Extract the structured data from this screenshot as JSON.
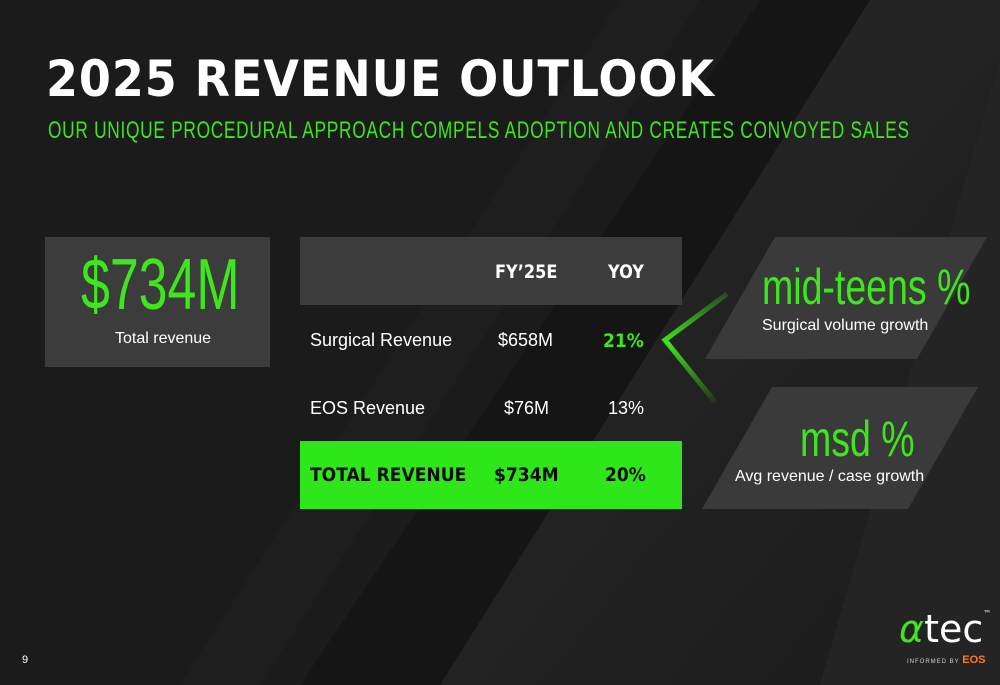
{
  "slide": {
    "title": "2025 REVENUE OUTLOOK",
    "subtitle": "OUR UNIQUE PROCEDURAL APPROACH COMPELS ADOPTION AND CREATES CONVOYED SALES",
    "page_number": "9"
  },
  "total_card": {
    "value": "$734M",
    "label": "Total revenue"
  },
  "table": {
    "headers": [
      "",
      "FY’25E",
      "YOY"
    ],
    "rows": [
      {
        "label": "Surgical Revenue",
        "fy25e": "$658M",
        "yoy": "21%"
      },
      {
        "label": "EOS Revenue",
        "fy25e": "$76M",
        "yoy": "13%"
      },
      {
        "label": "TOTAL REVENUE",
        "fy25e": "$734M",
        "yoy": "20%"
      }
    ]
  },
  "callouts": [
    {
      "headline": "mid-teens %",
      "caption": "Surgical volume growth"
    },
    {
      "headline": "msd %",
      "caption": "Avg revenue / case growth"
    }
  ],
  "logo": {
    "brand_alpha": "α",
    "brand_rest": "tec",
    "tm": "™",
    "tagline": "INFORMED BY",
    "tagline_brand": "EOS"
  },
  "colors": {
    "accent_green": "#3ee61c",
    "total_row_green": "#2ee61a",
    "card_gray": "#3c3c3c",
    "background": "#141414",
    "eos_orange": "#ff7a1a"
  }
}
